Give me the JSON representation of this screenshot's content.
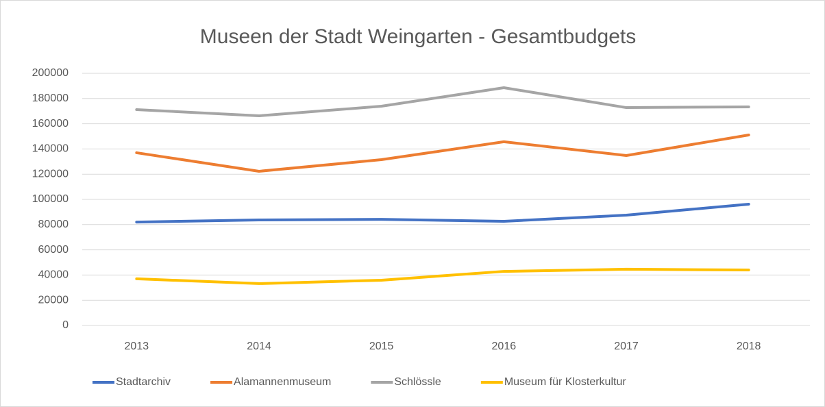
{
  "chart_data": {
    "type": "line",
    "title": "Museen der Stadt Weingarten - Gesamtbudgets",
    "categories": [
      "2013",
      "2014",
      "2015",
      "2016",
      "2017",
      "2018"
    ],
    "series": [
      {
        "name": "Stadtarchiv",
        "color": "#4472c4",
        "values": [
          82000,
          83700,
          84200,
          82600,
          87500,
          96200
        ]
      },
      {
        "name": "Alamannenmuseum",
        "color": "#ed7d31",
        "values": [
          137000,
          122300,
          131500,
          145700,
          134800,
          151100
        ]
      },
      {
        "name": "Schlössle",
        "color": "#a5a5a5",
        "values": [
          171200,
          166300,
          173900,
          188600,
          172800,
          173400
        ]
      },
      {
        "name": "Museum für Klosterkultur",
        "color": "#ffc000",
        "values": [
          37000,
          33200,
          35900,
          42900,
          44600,
          44000
        ]
      }
    ],
    "ylim": [
      0,
      200000
    ],
    "yticks": [
      0,
      20000,
      40000,
      60000,
      80000,
      100000,
      120000,
      140000,
      160000,
      180000,
      200000
    ],
    "grid": true,
    "legend": "bottom"
  }
}
